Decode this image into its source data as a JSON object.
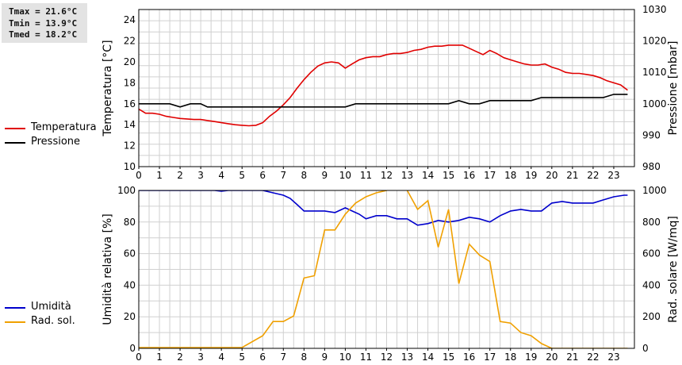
{
  "stats": {
    "tmax": "Tmax = 21.6°C",
    "tmin": "Tmin = 13.9°C",
    "tmed": "Tmed = 18.2°C"
  },
  "colors": {
    "temperature": "#e00000",
    "pressure": "#000000",
    "humidity": "#0000cc",
    "solar": "#f0a000",
    "grid": "#d0d0d0"
  },
  "legend_top": [
    {
      "name": "Temperatura",
      "color": "#e00000"
    },
    {
      "name": "Pressione",
      "color": "#000000"
    }
  ],
  "legend_bottom": [
    {
      "name": "Umidità",
      "color": "#0000cc"
    },
    {
      "name": "Rad. sol.",
      "color": "#f0a000"
    }
  ],
  "chart_data": [
    {
      "type": "line",
      "x_ticks": [
        "0",
        "1",
        "2",
        "3",
        "4",
        "5",
        "6",
        "7",
        "8",
        "9",
        "10",
        "11",
        "12",
        "13",
        "14",
        "15",
        "16",
        "17",
        "18",
        "19",
        "20",
        "21",
        "22",
        "23"
      ],
      "xlim": [
        0,
        24
      ],
      "ylabel": "Temperatura [°C]",
      "ylim": [
        10,
        25
      ],
      "y_ticks": [
        "10",
        "12",
        "14",
        "16",
        "18",
        "20",
        "22",
        "24"
      ],
      "y2label": "Pressione [mbar]",
      "y2lim": [
        980,
        1030
      ],
      "y2_ticks": [
        "980",
        "990",
        "1000",
        "1010",
        "1020",
        "1030"
      ],
      "grid": true,
      "series": [
        {
          "name": "Temperatura",
          "axis": "left",
          "color": "#e00000",
          "x": [
            0,
            0.33,
            0.67,
            1,
            1.33,
            1.67,
            2,
            2.33,
            2.67,
            3,
            3.33,
            3.67,
            4,
            4.33,
            4.67,
            5,
            5.33,
            5.67,
            6,
            6.33,
            6.67,
            7,
            7.33,
            7.67,
            8,
            8.33,
            8.67,
            9,
            9.33,
            9.67,
            10,
            10.33,
            10.67,
            11,
            11.33,
            11.67,
            12,
            12.33,
            12.67,
            13,
            13.33,
            13.67,
            14,
            14.33,
            14.67,
            15,
            15.33,
            15.67,
            16,
            16.33,
            16.67,
            17,
            17.33,
            17.67,
            18,
            18.33,
            18.67,
            19,
            19.33,
            19.67,
            20,
            20.33,
            20.67,
            21,
            21.33,
            21.67,
            22,
            22.33,
            22.67,
            23,
            23.33,
            23.67
          ],
          "values": [
            15.5,
            15.1,
            15.1,
            15.0,
            14.8,
            14.7,
            14.6,
            14.55,
            14.5,
            14.5,
            14.4,
            14.3,
            14.2,
            14.1,
            14.0,
            13.95,
            13.9,
            13.95,
            14.2,
            14.8,
            15.3,
            15.9,
            16.6,
            17.5,
            18.3,
            19.0,
            19.6,
            19.9,
            20.0,
            19.9,
            19.4,
            19.8,
            20.2,
            20.4,
            20.5,
            20.5,
            20.7,
            20.8,
            20.8,
            20.9,
            21.1,
            21.2,
            21.4,
            21.5,
            21.5,
            21.6,
            21.6,
            21.6,
            21.3,
            21.0,
            20.7,
            21.1,
            20.8,
            20.4,
            20.2,
            20.0,
            19.8,
            19.7,
            19.7,
            19.8,
            19.5,
            19.3,
            19.0,
            18.9,
            18.9,
            18.8,
            18.7,
            18.5,
            18.2,
            18.0,
            17.8,
            17.3
          ]
        },
        {
          "name": "Pressione",
          "axis": "right",
          "color": "#000000",
          "x": [
            0,
            1.5,
            2,
            2.5,
            3,
            3.33,
            6.5,
            10,
            10.5,
            15,
            15.5,
            16,
            16.5,
            17,
            19,
            19.5,
            22.5,
            23,
            23.67
          ],
          "values": [
            1000,
            1000,
            999,
            1000,
            1000,
            999,
            999,
            999,
            1000,
            1000,
            1001,
            1000,
            1000,
            1001,
            1001,
            1002,
            1002,
            1003,
            1003
          ]
        }
      ]
    },
    {
      "type": "line",
      "x_ticks": [
        "0",
        "1",
        "2",
        "3",
        "4",
        "5",
        "6",
        "7",
        "8",
        "9",
        "10",
        "11",
        "12",
        "13",
        "14",
        "15",
        "16",
        "17",
        "18",
        "19",
        "20",
        "21",
        "22",
        "23"
      ],
      "xlim": [
        0,
        24
      ],
      "ylabel": "Umidità relativa [%]",
      "ylim": [
        0,
        100
      ],
      "y_ticks": [
        "0",
        "20",
        "40",
        "60",
        "80",
        "100"
      ],
      "y2label": "Rad. solare [W/mq]",
      "y2lim": [
        0,
        1000
      ],
      "y2_ticks": [
        "0",
        "200",
        "400",
        "600",
        "800",
        "1000"
      ],
      "grid": true,
      "series": [
        {
          "name": "Umidità",
          "axis": "left",
          "color": "#0000cc",
          "x": [
            0,
            3.67,
            4,
            4.33,
            5,
            6,
            6.67,
            7,
            7.33,
            7.67,
            8,
            8.5,
            9,
            9.5,
            10,
            10.33,
            10.67,
            11,
            11.5,
            12,
            12.5,
            13,
            13.5,
            14,
            14.5,
            15,
            15.5,
            16,
            16.5,
            17,
            17.5,
            18,
            18.5,
            19,
            19.5,
            20,
            20.5,
            21,
            21.5,
            22,
            22.5,
            23,
            23.5,
            23.67
          ],
          "values": [
            100,
            100,
            99.5,
            100,
            100,
            100,
            98,
            97,
            95,
            91,
            87,
            87,
            87,
            86,
            89,
            87,
            85,
            82,
            84,
            84,
            82,
            82,
            78,
            79,
            81,
            80,
            81,
            83,
            82,
            80,
            84,
            87,
            88,
            87,
            87,
            92,
            93,
            92,
            92,
            92,
            94,
            96,
            97,
            97
          ]
        },
        {
          "name": "Rad. sol.",
          "axis": "right",
          "color": "#f0a000",
          "x": [
            0,
            5,
            6,
            6.5,
            7,
            7.5,
            8,
            8.5,
            9,
            9.5,
            10,
            10.5,
            11,
            11.5,
            12,
            12.5,
            13,
            13.5,
            14,
            14.5,
            15,
            15.5,
            16,
            16.5,
            17,
            17.5,
            18,
            18.5,
            19,
            19.5,
            20,
            20.5,
            23.67
          ],
          "values": [
            5,
            5,
            80,
            170,
            170,
            205,
            445,
            460,
            750,
            750,
            850,
            920,
            960,
            985,
            1000,
            1050,
            1000,
            880,
            935,
            640,
            880,
            410,
            660,
            590,
            550,
            170,
            160,
            100,
            80,
            30,
            0,
            0,
            0
          ]
        }
      ]
    }
  ]
}
